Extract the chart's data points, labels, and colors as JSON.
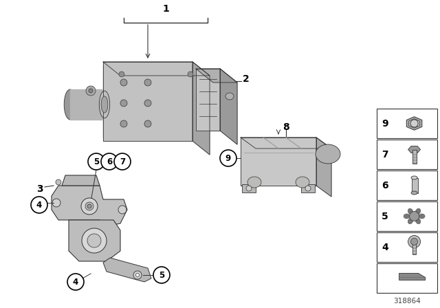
{
  "background_color": "#ffffff",
  "image_number": "318864",
  "line_color": "#333333",
  "gray_light": "#c8c8c8",
  "gray_mid": "#aaaaaa",
  "gray_dark": "#888888",
  "gray_darker": "#666666",
  "panel_items": [
    {
      "num": "9",
      "shape": "nut"
    },
    {
      "num": "7",
      "shape": "bolt"
    },
    {
      "num": "6",
      "shape": "sleeve"
    },
    {
      "num": "5",
      "shape": "cap"
    },
    {
      "num": "4",
      "shape": "screw"
    },
    {
      "num": "",
      "shape": "wedge"
    }
  ]
}
